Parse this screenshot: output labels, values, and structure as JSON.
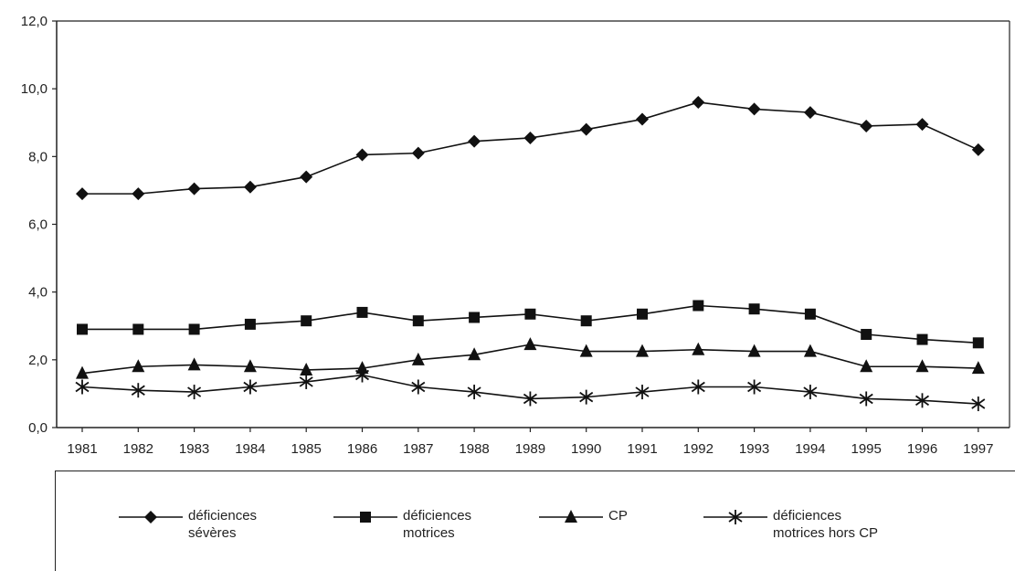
{
  "chart_data": {
    "type": "line",
    "x": [
      "1981",
      "1982",
      "1983",
      "1984",
      "1985",
      "1986",
      "1987",
      "1988",
      "1989",
      "1990",
      "1991",
      "1992",
      "1993",
      "1994",
      "1995",
      "1996",
      "1997"
    ],
    "ylim": [
      0,
      12
    ],
    "yticks": [
      "0,0",
      "2,0",
      "4,0",
      "6,0",
      "8,0",
      "10,0",
      "12,0"
    ],
    "grid": false,
    "legend_position": "bottom",
    "series": [
      {
        "name": "déficiences sévères",
        "marker": "diamond",
        "values": [
          6.9,
          6.9,
          7.05,
          7.1,
          7.4,
          8.05,
          8.1,
          8.45,
          8.55,
          8.8,
          9.1,
          9.6,
          9.4,
          9.3,
          8.9,
          8.95,
          8.2
        ]
      },
      {
        "name": "déficiences motrices",
        "marker": "square",
        "values": [
          2.9,
          2.9,
          2.9,
          3.05,
          3.15,
          3.4,
          3.15,
          3.25,
          3.35,
          3.15,
          3.35,
          3.6,
          3.5,
          3.35,
          2.75,
          2.6,
          2.5
        ]
      },
      {
        "name": "CP",
        "marker": "triangle",
        "values": [
          1.6,
          1.8,
          1.85,
          1.8,
          1.7,
          1.75,
          2.0,
          2.15,
          2.45,
          2.25,
          2.25,
          2.3,
          2.25,
          2.25,
          1.8,
          1.8,
          1.75
        ]
      },
      {
        "name": "déficiences motrices hors CP",
        "marker": "asterisk",
        "values": [
          1.2,
          1.1,
          1.05,
          1.2,
          1.35,
          1.55,
          1.2,
          1.05,
          0.85,
          0.9,
          1.05,
          1.2,
          1.2,
          1.05,
          0.85,
          0.8,
          0.7
        ]
      }
    ]
  },
  "legend": {
    "items": [
      {
        "line1": "déficiences",
        "line2": "sévères"
      },
      {
        "line1": "déficiences",
        "line2": "motrices"
      },
      {
        "line1": "CP",
        "line2": ""
      },
      {
        "line1": "déficiences",
        "line2": "motrices hors CP"
      }
    ]
  }
}
